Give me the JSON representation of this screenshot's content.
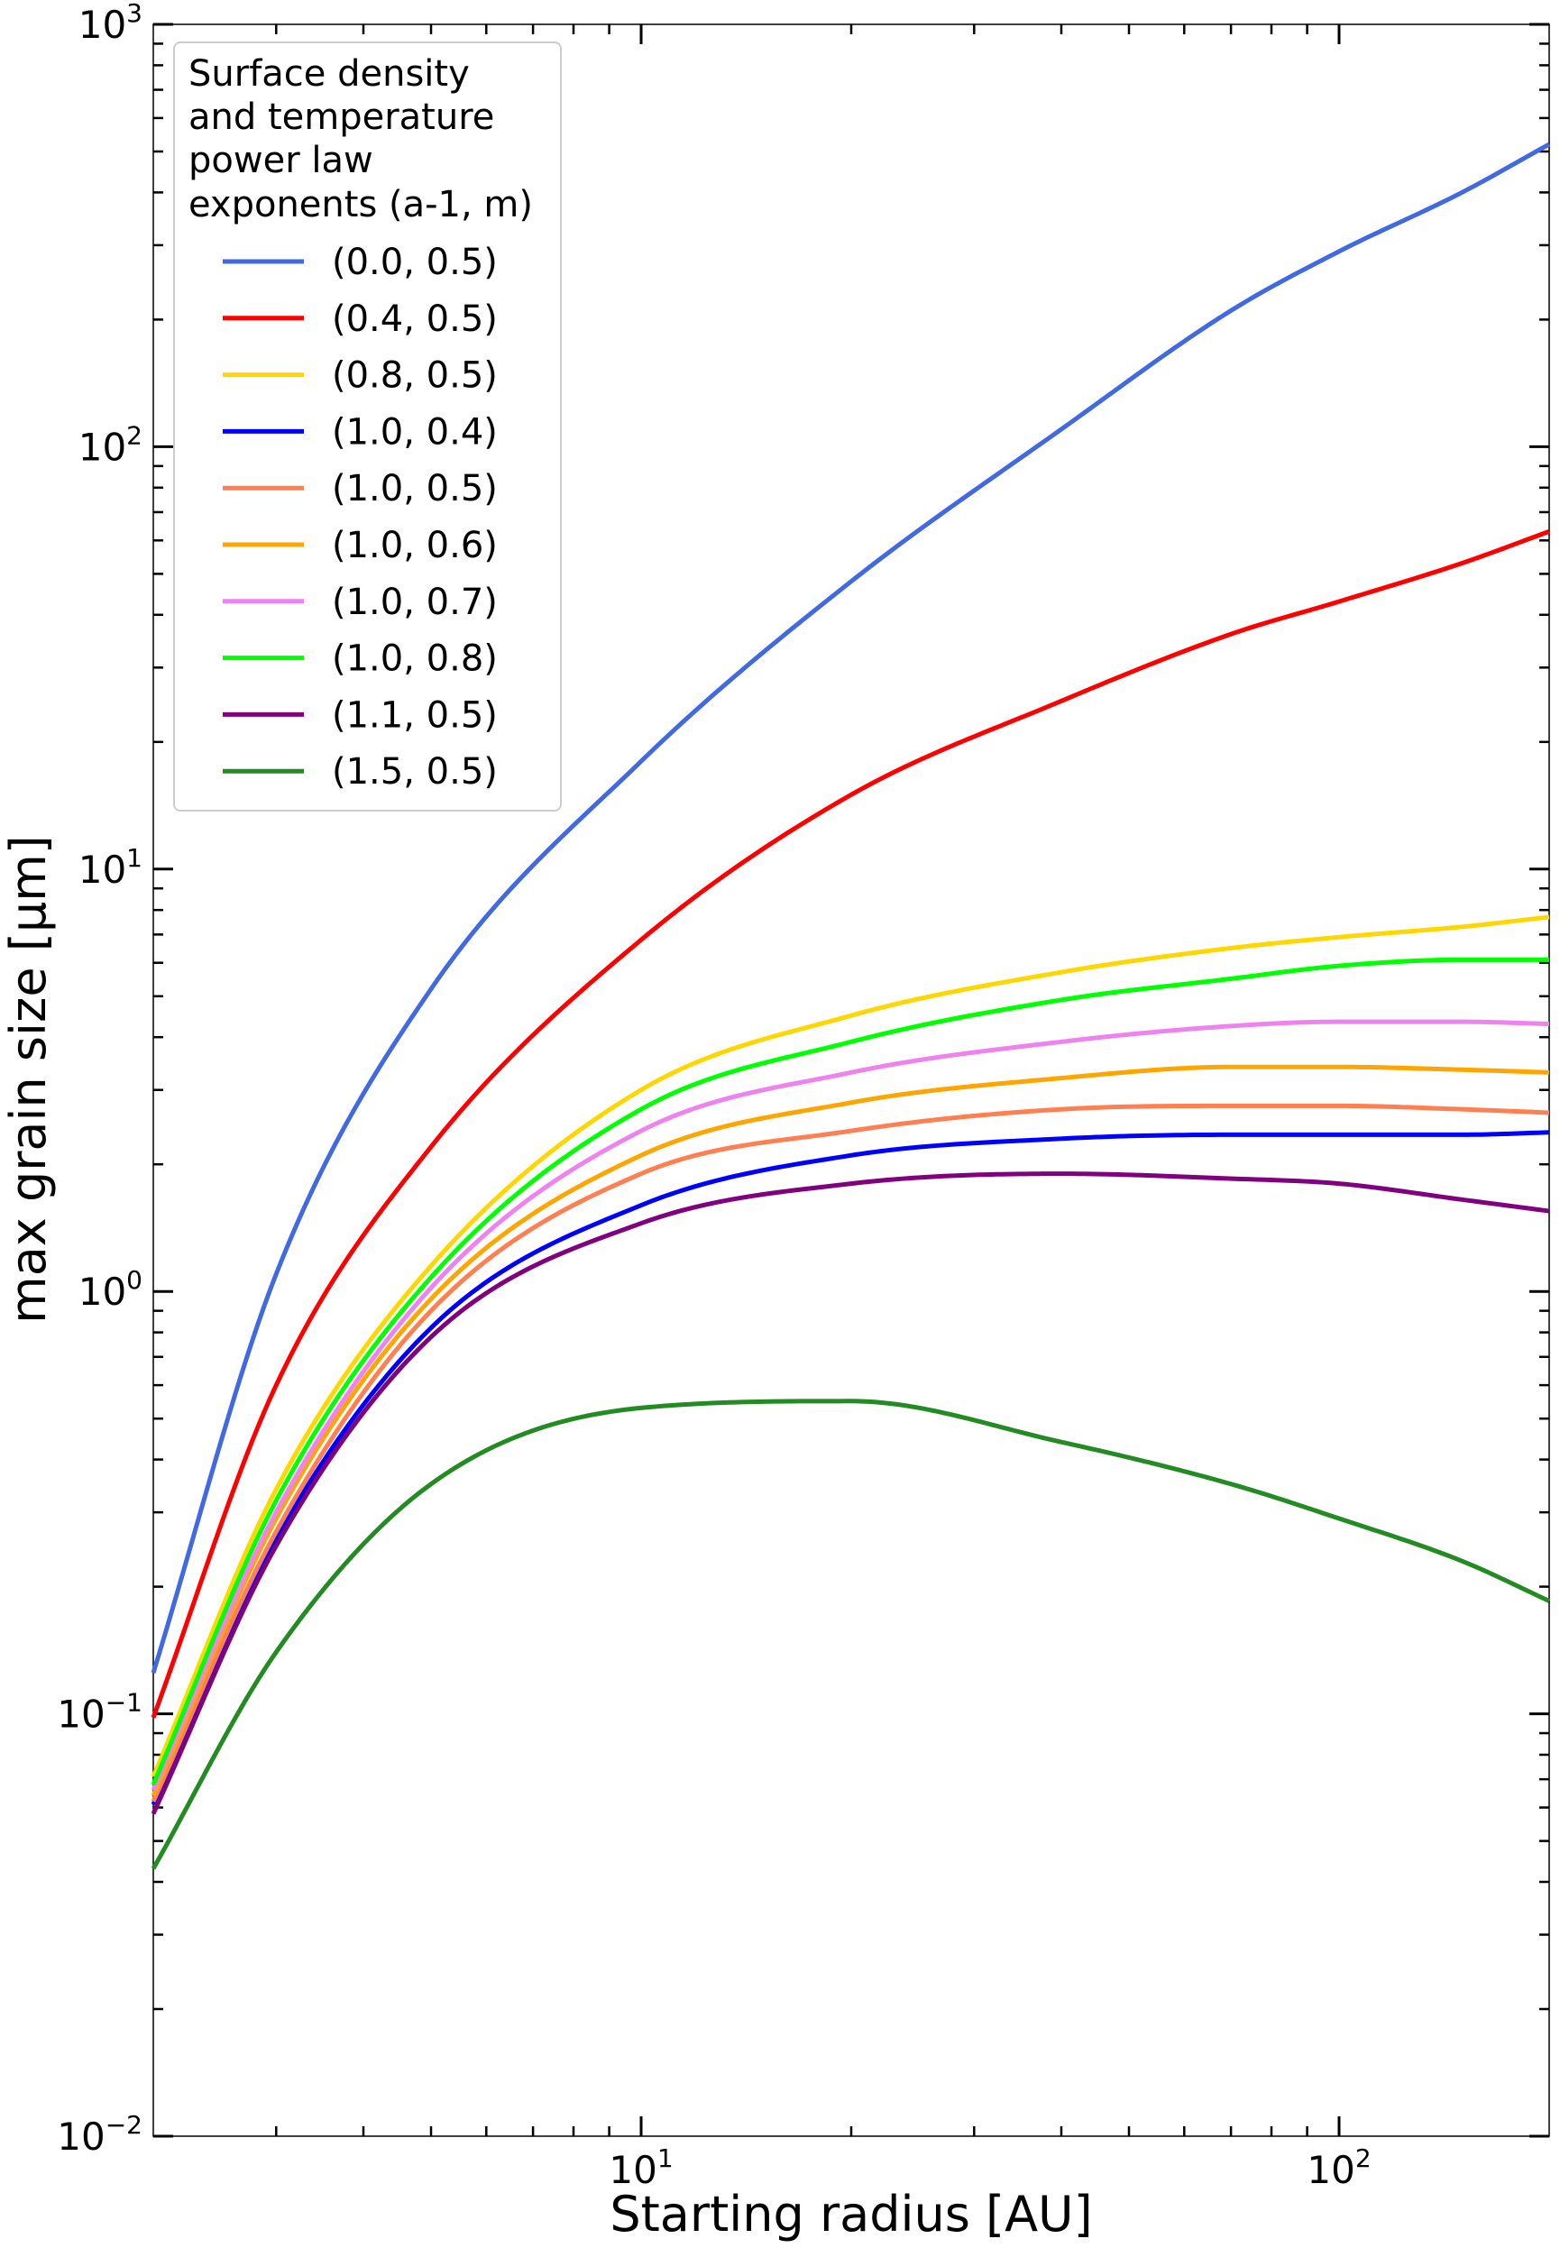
{
  "chart_data": {
    "type": "line",
    "title": "",
    "xlabel": "Starting radius [AU]",
    "ylabel": "max grain size [μm]",
    "xscale": "log",
    "yscale": "log",
    "xlim": [
      2,
      200
    ],
    "ylim": [
      0.01,
      1000
    ],
    "grid": false,
    "x_ticks": [
      {
        "base": "10",
        "exp": "1",
        "value": 10
      },
      {
        "base": "10",
        "exp": "2",
        "value": 100
      }
    ],
    "y_ticks": [
      {
        "base": "10",
        "exp": "−2",
        "value": 0.01
      },
      {
        "base": "10",
        "exp": "−1",
        "value": 0.1
      },
      {
        "base": "10",
        "exp": "0",
        "value": 1
      },
      {
        "base": "10",
        "exp": "1",
        "value": 10
      },
      {
        "base": "10",
        "exp": "2",
        "value": 100
      },
      {
        "base": "10",
        "exp": "3",
        "value": 1000
      }
    ],
    "legend": {
      "position": "top-left",
      "title_lines": [
        "Surface density",
        "and temperature",
        "power law",
        "exponents (a-1, m)"
      ]
    },
    "x": [
      2,
      3,
      5,
      10,
      20,
      40,
      70,
      100,
      150,
      200
    ],
    "series": [
      {
        "name": "(0.0, 0.5)",
        "color": "#4169e1",
        "values": [
          0.125,
          1.1,
          5.2,
          18,
          48,
          110,
          210,
          290,
          400,
          520
        ]
      },
      {
        "name": "(0.4, 0.5)",
        "color": "#ff0000",
        "values": [
          0.098,
          0.6,
          2.2,
          6.8,
          15,
          25,
          36,
          43,
          53,
          63
        ]
      },
      {
        "name": "(0.8, 0.5)",
        "color": "#ffd700",
        "values": [
          0.071,
          0.34,
          1.15,
          3.0,
          4.5,
          5.7,
          6.5,
          6.9,
          7.3,
          7.7
        ]
      },
      {
        "name": "(1.0, 0.4)",
        "color": "#0000ff",
        "values": [
          0.061,
          0.26,
          0.82,
          1.6,
          2.1,
          2.3,
          2.35,
          2.35,
          2.35,
          2.38
        ]
      },
      {
        "name": "(1.0, 0.5)",
        "color": "#ff7f50",
        "values": [
          0.062,
          0.27,
          0.9,
          1.9,
          2.4,
          2.7,
          2.75,
          2.75,
          2.7,
          2.65
        ]
      },
      {
        "name": "(1.0, 0.6)",
        "color": "#ffa500",
        "values": [
          0.064,
          0.29,
          0.96,
          2.1,
          2.8,
          3.2,
          3.4,
          3.4,
          3.35,
          3.3
        ]
      },
      {
        "name": "(1.0, 0.7)",
        "color": "#ee82ee",
        "values": [
          0.066,
          0.3,
          1.02,
          2.4,
          3.3,
          3.9,
          4.25,
          4.35,
          4.35,
          4.3
        ]
      },
      {
        "name": "(1.0, 0.8)",
        "color": "#00ff00",
        "values": [
          0.068,
          0.32,
          1.08,
          2.7,
          3.9,
          4.9,
          5.5,
          5.9,
          6.1,
          6.1
        ]
      },
      {
        "name": "(1.1, 0.5)",
        "color": "#800080",
        "values": [
          0.058,
          0.25,
          0.78,
          1.45,
          1.8,
          1.9,
          1.85,
          1.8,
          1.65,
          1.55
        ]
      },
      {
        "name": "(1.5, 0.5)",
        "color": "#228b22",
        "values": [
          0.043,
          0.14,
          0.35,
          0.53,
          0.55,
          0.44,
          0.35,
          0.29,
          0.23,
          0.185
        ]
      }
    ]
  }
}
